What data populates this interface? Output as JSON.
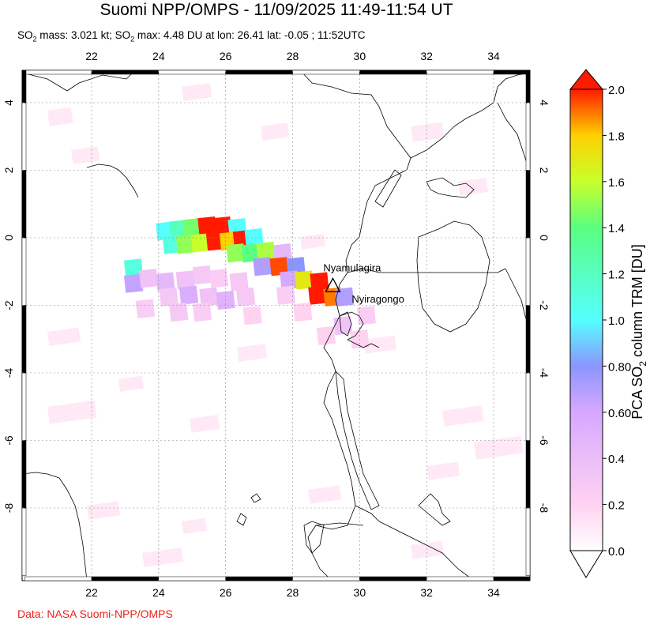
{
  "header": {
    "title": "Suomi NPP/OMPS - 11/09/2025 11:49-11:54 UT",
    "subtitle_parts": [
      "SO",
      "2",
      " mass: 3.021 kt; SO",
      "2",
      " max: 4.48 DU at lon: 26.41 lat: -0.05 ; 11:52UTC"
    ]
  },
  "credit": "Data: NASA Suomi-NPP/OMPS",
  "map": {
    "lon_range": [
      20,
      35
    ],
    "lat_range": [
      -10,
      5
    ],
    "x_ticks": [
      "22",
      "24",
      "26",
      "28",
      "30",
      "32",
      "34"
    ],
    "x_tick_values": [
      22,
      24,
      26,
      28,
      30,
      32,
      34
    ],
    "y_ticks": [
      "4",
      "2",
      "0",
      "-2",
      "-4",
      "-6",
      "-8"
    ],
    "y_tick_values": [
      4,
      2,
      0,
      -2,
      -4,
      -6,
      -8
    ],
    "volcanoes": [
      {
        "name": "Nyamulagira",
        "lon": 29.2,
        "lat": -1.41
      },
      {
        "name": "Nyiragongo",
        "lon": 29.25,
        "lat": -1.52
      }
    ],
    "so2_pixels": [
      {
        "lon": 24.2,
        "lat": 0.2,
        "du": 1.0
      },
      {
        "lon": 24.6,
        "lat": 0.25,
        "du": 1.2
      },
      {
        "lon": 25.0,
        "lat": 0.3,
        "du": 1.45
      },
      {
        "lon": 25.45,
        "lat": 0.35,
        "du": 2.0
      },
      {
        "lon": 25.9,
        "lat": 0.35,
        "du": 2.0
      },
      {
        "lon": 26.35,
        "lat": 0.3,
        "du": 1.0
      },
      {
        "lon": 24.4,
        "lat": -0.2,
        "du": 1.1
      },
      {
        "lon": 24.8,
        "lat": -0.2,
        "du": 1.5
      },
      {
        "lon": 25.25,
        "lat": -0.15,
        "du": 1.6
      },
      {
        "lon": 25.7,
        "lat": -0.1,
        "du": 2.0
      },
      {
        "lon": 26.1,
        "lat": -0.1,
        "du": 1.8
      },
      {
        "lon": 26.5,
        "lat": -0.05,
        "du": 2.0
      },
      {
        "lon": 26.85,
        "lat": 0.0,
        "du": 1.0
      },
      {
        "lon": 26.3,
        "lat": -0.45,
        "du": 1.5
      },
      {
        "lon": 26.75,
        "lat": -0.45,
        "du": 1.4
      },
      {
        "lon": 27.2,
        "lat": -0.4,
        "du": 1.55
      },
      {
        "lon": 27.7,
        "lat": -0.45,
        "du": 0.45
      },
      {
        "lon": 27.1,
        "lat": -0.85,
        "du": 0.7
      },
      {
        "lon": 27.6,
        "lat": -0.85,
        "du": 1.95
      },
      {
        "lon": 28.1,
        "lat": -0.85,
        "du": 0.8
      },
      {
        "lon": 27.9,
        "lat": -1.25,
        "du": 0.6
      },
      {
        "lon": 28.35,
        "lat": -1.25,
        "du": 1.7
      },
      {
        "lon": 28.8,
        "lat": -1.3,
        "du": 2.0
      },
      {
        "lon": 28.75,
        "lat": -1.7,
        "du": 2.0
      },
      {
        "lon": 29.2,
        "lat": -1.75,
        "du": 1.9
      },
      {
        "lon": 29.55,
        "lat": -1.75,
        "du": 0.7
      },
      {
        "lon": 23.25,
        "lat": -0.9,
        "du": 1.1
      },
      {
        "lon": 23.25,
        "lat": -1.35,
        "du": 0.65
      },
      {
        "lon": 23.7,
        "lat": -1.2,
        "du": 0.35
      },
      {
        "lon": 24.2,
        "lat": -1.3,
        "du": 0.45
      },
      {
        "lon": 24.8,
        "lat": -1.25,
        "du": 0.35
      },
      {
        "lon": 25.3,
        "lat": -1.1,
        "du": 0.3
      },
      {
        "lon": 25.8,
        "lat": -1.2,
        "du": 0.25
      },
      {
        "lon": 26.4,
        "lat": -1.3,
        "du": 0.3
      },
      {
        "lon": 24.3,
        "lat": -1.75,
        "du": 0.3
      },
      {
        "lon": 24.9,
        "lat": -1.7,
        "du": 0.55
      },
      {
        "lon": 25.5,
        "lat": -1.75,
        "du": 0.35
      },
      {
        "lon": 26.0,
        "lat": -1.85,
        "du": 0.5
      },
      {
        "lon": 26.6,
        "lat": -1.75,
        "du": 0.3
      },
      {
        "lon": 23.6,
        "lat": -2.1,
        "du": 0.25
      },
      {
        "lon": 24.6,
        "lat": -2.2,
        "du": 0.3
      },
      {
        "lon": 25.3,
        "lat": -2.2,
        "du": 0.25
      },
      {
        "lon": 26.8,
        "lat": -2.3,
        "du": 0.2
      },
      {
        "lon": 29.5,
        "lat": -2.6,
        "du": 0.35
      },
      {
        "lon": 30.2,
        "lat": -2.3,
        "du": 0.25
      },
      {
        "lon": 29.0,
        "lat": -2.9,
        "du": 0.2
      },
      {
        "lon": 30.0,
        "lat": -3.0,
        "du": 0.2
      },
      {
        "lon": 27.8,
        "lat": -1.7,
        "du": 0.25
      },
      {
        "lon": 28.3,
        "lat": -2.2,
        "du": 0.2
      }
    ]
  },
  "colorbar": {
    "title": "PCA SO",
    "title_sub": "2",
    "title_rest": " column TRM [DU]",
    "min": 0.0,
    "max": 2.0,
    "labels": [
      "2.0",
      "1.8",
      "1.6",
      "1.4",
      "1.2",
      "1.0",
      "0.80",
      "0.60",
      "0.4",
      "0.2",
      "0.0"
    ],
    "label_values": [
      2.0,
      1.8,
      1.6,
      1.4,
      1.2,
      1.0,
      0.8,
      0.6,
      0.4,
      0.2,
      0.0
    ],
    "stops": [
      "#ffffff",
      "#ffd2f2",
      "#d6a8ff",
      "#8c95ff",
      "#55ffff",
      "#59ff80",
      "#c8ff2a",
      "#ffd000",
      "#ff7a00",
      "#ff1a00"
    ]
  }
}
